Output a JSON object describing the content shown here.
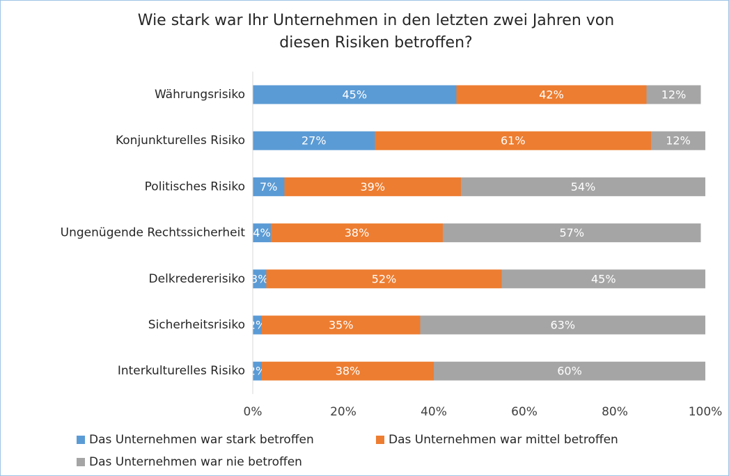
{
  "chart_data": {
    "type": "stacked-bar-horizontal",
    "title": [
      "Wie stark war Ihr Unternehmen in den letzten zwei Jahren von",
      "diesen Risiken betroffen?"
    ],
    "categories": [
      "Währungsrisiko",
      "Konjunkturelles Risiko",
      "Politisches Risiko",
      "Ungenügende Rechtssicherheit",
      "Delkredererisiko",
      "Sicherheitsrisiko",
      "Interkulturelles Risiko"
    ],
    "series": [
      {
        "name": "Das Unternehmen war stark betroffen",
        "color": "#5b9bd5",
        "values": [
          45,
          27,
          7,
          4,
          3,
          2,
          2
        ],
        "value_labels": [
          "45%",
          "27%",
          "7%",
          "4%",
          "3%",
          "2%",
          "2%"
        ]
      },
      {
        "name": "Das Unternehmen war mittel betroffen",
        "color": "#ed7d31",
        "values": [
          42,
          61,
          39,
          38,
          52,
          35,
          38
        ],
        "value_labels": [
          "42%",
          "61%",
          "39%",
          "38%",
          "52%",
          "35%",
          "38%"
        ]
      },
      {
        "name": "Das Unternehmen war nie betroffen",
        "color": "#a5a5a5",
        "values": [
          12,
          12,
          54,
          57,
          45,
          63,
          60
        ],
        "value_labels": [
          "12%",
          "12%",
          "54%",
          "57%",
          "45%",
          "63%",
          "60%"
        ]
      }
    ],
    "xlim": [
      0,
      100
    ],
    "xticks": [
      {
        "value": 0,
        "label": "0%"
      },
      {
        "value": 20,
        "label": "20%"
      },
      {
        "value": 40,
        "label": "40%"
      },
      {
        "value": 60,
        "label": "60%"
      },
      {
        "value": 80,
        "label": "80%"
      },
      {
        "value": 100,
        "label": "100%"
      }
    ],
    "grid": false,
    "legend": "bottom"
  }
}
